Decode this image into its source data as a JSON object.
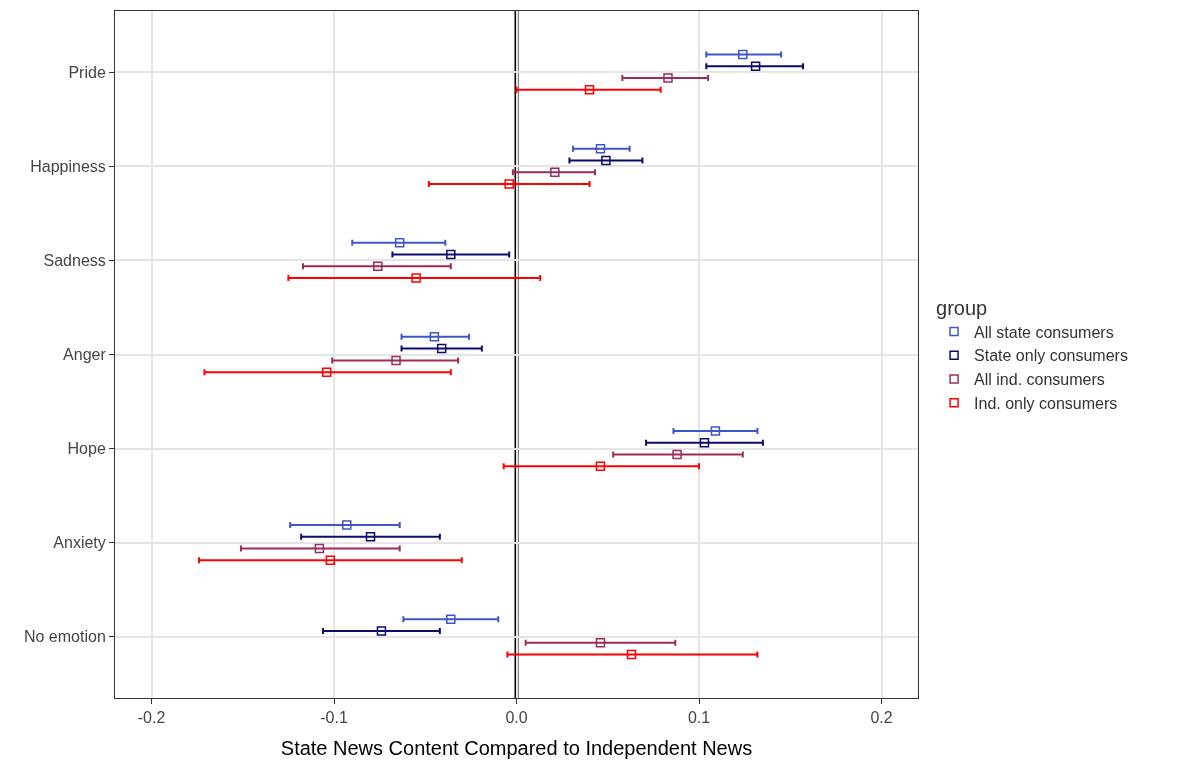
{
  "chart_data": {
    "type": "scatter",
    "orientation": "horizontal",
    "xlabel": "State News Content Compared to Independent News",
    "legend_title": "group",
    "legend": "right",
    "grid": true,
    "marker": "square",
    "categories": [
      "Pride",
      "Happiness",
      "Sadness",
      "Anger",
      "Hope",
      "Anxiety",
      "No emotion"
    ],
    "xlim": [
      -0.22,
      0.22
    ],
    "xticks": [
      -0.2,
      -0.1,
      {
        "value": 0,
        "label": "0.0"
      },
      0.1,
      0.2
    ],
    "ref_lines": [
      {
        "axis": "x",
        "value": 0,
        "color": "#000000"
      }
    ],
    "series": [
      {
        "name": "All state consumers",
        "color": "#3f56c9",
        "values": [
          0.124,
          0.046,
          -0.064,
          -0.045,
          0.109,
          -0.093,
          -0.036
        ],
        "errors": [
          [
            0.104,
            0.145
          ],
          [
            0.031,
            0.062
          ],
          [
            -0.09,
            -0.039
          ],
          [
            -0.063,
            -0.026
          ],
          [
            0.086,
            0.132
          ],
          [
            -0.124,
            -0.064
          ],
          [
            -0.062,
            -0.01
          ]
        ]
      },
      {
        "name": "State only consumers",
        "color": "#0b0b6e",
        "values": [
          0.131,
          0.049,
          -0.036,
          -0.041,
          0.103,
          -0.08,
          -0.074
        ],
        "errors": [
          [
            0.104,
            0.157
          ],
          [
            0.029,
            0.069
          ],
          [
            -0.068,
            -0.004
          ],
          [
            -0.063,
            -0.019
          ],
          [
            0.071,
            0.135
          ],
          [
            -0.118,
            -0.042
          ],
          [
            -0.106,
            -0.042
          ]
        ]
      },
      {
        "name": "All ind. consumers",
        "color": "#9b2c5a",
        "values": [
          0.083,
          0.021,
          -0.076,
          -0.066,
          0.088,
          -0.108,
          0.046
        ],
        "errors": [
          [
            0.058,
            0.105
          ],
          [
            -0.002,
            0.043
          ],
          [
            -0.117,
            -0.036
          ],
          [
            -0.101,
            -0.032
          ],
          [
            0.053,
            0.124
          ],
          [
            -0.151,
            -0.064
          ],
          [
            0.005,
            0.087
          ]
        ]
      },
      {
        "name": "Ind. only consumers",
        "color": "#ff0000",
        "values": [
          0.04,
          -0.004,
          -0.055,
          -0.104,
          0.046,
          -0.102,
          0.063
        ],
        "errors": [
          [
            0.0,
            0.079
          ],
          [
            -0.048,
            0.04
          ],
          [
            -0.125,
            0.013
          ],
          [
            -0.171,
            -0.036
          ],
          [
            -0.007,
            0.1
          ],
          [
            -0.174,
            -0.03
          ],
          [
            -0.005,
            0.132
          ]
        ]
      }
    ]
  }
}
